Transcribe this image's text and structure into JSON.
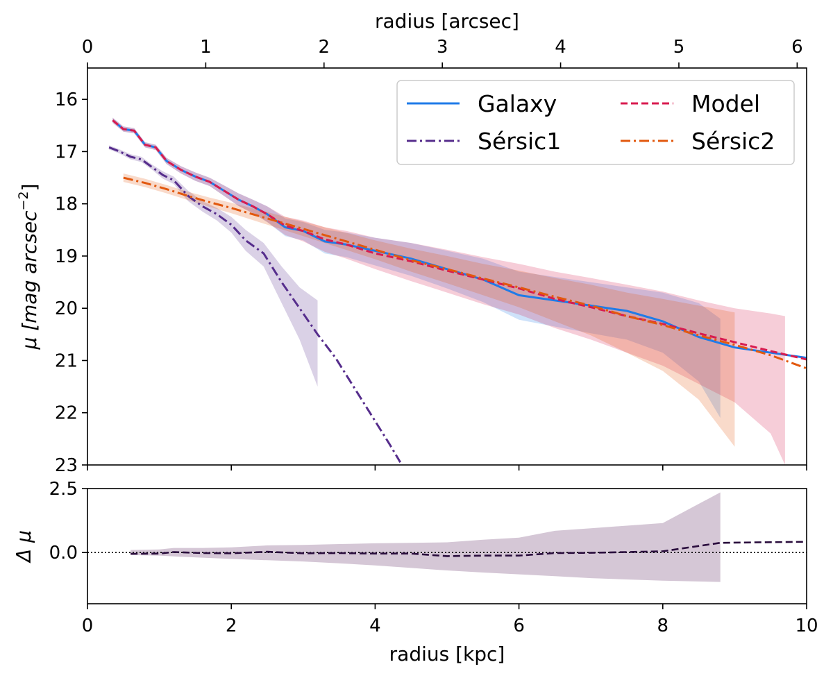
{
  "chart_data": [
    {
      "type": "line",
      "panel": "profile",
      "xlabel": "radius [kpc]",
      "ylabel": "μ [mag arcsec⁻²]",
      "ylabel_main": "μ [mag arcsec",
      "ylabel_exp": "−2",
      "ylabel_close": "]",
      "top_xlabel": "radius [arcsec]",
      "xlim": [
        0,
        10
      ],
      "ylim": [
        23,
        15.4
      ],
      "y_inverted": true,
      "top_xlim": [
        0,
        6.08
      ],
      "top_ticks": [
        0,
        1,
        2,
        3,
        4,
        5,
        6
      ],
      "top_tick_labels": [
        "0",
        "1",
        "2",
        "3",
        "4",
        "5",
        "6"
      ],
      "y_ticks": [
        16,
        17,
        18,
        19,
        20,
        21,
        22,
        23
      ],
      "y_tick_labels": [
        "16",
        "17",
        "18",
        "19",
        "20",
        "21",
        "22",
        "23"
      ],
      "x_ticks": [
        0,
        2,
        4,
        6,
        8,
        10
      ],
      "grid": false,
      "legend": {
        "placement": "top-right",
        "columns": 2
      },
      "series": [
        {
          "name": "Galaxy",
          "color": "#1f7be8",
          "dash": "solid",
          "x": [
            0.35,
            0.5,
            0.65,
            0.8,
            0.95,
            1.1,
            1.3,
            1.5,
            1.7,
            1.9,
            2.1,
            2.3,
            2.5,
            2.75,
            3.0,
            3.3,
            3.6,
            4.0,
            4.5,
            5.0,
            5.5,
            6.0,
            6.5,
            7.0,
            7.5,
            8.0,
            8.5,
            9.0,
            9.5,
            10.0
          ],
          "y": [
            16.4,
            16.57,
            16.6,
            16.87,
            16.92,
            17.18,
            17.35,
            17.48,
            17.58,
            17.75,
            17.92,
            18.05,
            18.2,
            18.45,
            18.52,
            18.72,
            18.78,
            18.9,
            19.05,
            19.25,
            19.45,
            19.75,
            19.85,
            19.95,
            20.05,
            20.25,
            20.55,
            20.75,
            20.85,
            20.95
          ],
          "band_upper": [
            16.35,
            16.52,
            16.55,
            16.82,
            16.87,
            17.12,
            17.28,
            17.4,
            17.5,
            17.65,
            17.8,
            17.92,
            18.05,
            18.28,
            18.35,
            18.5,
            18.55,
            18.65,
            18.75,
            18.9,
            19.05,
            19.3,
            19.4,
            19.5,
            19.6,
            19.7,
            19.9,
            20.2
          ],
          "band_lower": [
            16.45,
            16.62,
            16.65,
            16.92,
            16.97,
            17.24,
            17.42,
            17.56,
            17.66,
            17.85,
            18.04,
            18.18,
            18.35,
            18.62,
            18.7,
            18.95,
            19.02,
            19.18,
            19.38,
            19.62,
            19.88,
            20.22,
            20.35,
            20.48,
            20.6,
            20.85,
            21.4,
            22.1
          ],
          "band_x_max": 8.8
        },
        {
          "name": "Model",
          "color": "#d81b4f",
          "dash": "dashed",
          "x": [
            0.35,
            0.5,
            0.65,
            0.8,
            0.95,
            1.1,
            1.3,
            1.5,
            1.7,
            1.9,
            2.1,
            2.3,
            2.5,
            2.75,
            3.0,
            3.3,
            3.6,
            4.0,
            4.5,
            5.0,
            5.5,
            6.0,
            6.5,
            7.0,
            7.5,
            8.0,
            8.5,
            9.0,
            9.5,
            10.0
          ],
          "y": [
            16.4,
            16.57,
            16.6,
            16.87,
            16.92,
            17.18,
            17.35,
            17.48,
            17.58,
            17.75,
            17.92,
            18.05,
            18.2,
            18.42,
            18.52,
            18.68,
            18.78,
            18.95,
            19.1,
            19.28,
            19.45,
            19.62,
            19.82,
            19.98,
            20.15,
            20.3,
            20.48,
            20.65,
            20.82,
            20.98
          ],
          "band_upper": [
            16.35,
            16.52,
            16.55,
            16.82,
            16.87,
            17.12,
            17.28,
            17.4,
            17.5,
            17.65,
            17.8,
            17.92,
            18.05,
            18.25,
            18.32,
            18.45,
            18.52,
            18.65,
            18.75,
            18.88,
            19.02,
            19.15,
            19.3,
            19.42,
            19.55,
            19.68,
            19.85,
            20.0,
            20.1,
            20.15
          ],
          "band_lower": [
            16.45,
            16.62,
            16.65,
            16.92,
            16.97,
            17.24,
            17.42,
            17.56,
            17.66,
            17.85,
            18.04,
            18.18,
            18.35,
            18.6,
            18.72,
            18.92,
            19.05,
            19.25,
            19.48,
            19.7,
            19.92,
            20.12,
            20.38,
            20.6,
            20.85,
            21.1,
            21.45,
            21.8,
            22.4,
            23.0
          ],
          "band_x_max": 9.7
        },
        {
          "name": "Sérsic1",
          "color": "#562d8c",
          "dash": "dashdot",
          "x": [
            0.3,
            0.45,
            0.6,
            0.75,
            0.9,
            1.05,
            1.2,
            1.4,
            1.6,
            1.8,
            2.0,
            2.2,
            2.45,
            2.7,
            2.95,
            3.2,
            3.45,
            3.7,
            3.95,
            4.2,
            4.35
          ],
          "y": [
            16.92,
            17.0,
            17.1,
            17.15,
            17.3,
            17.45,
            17.55,
            17.85,
            18.05,
            18.2,
            18.4,
            18.7,
            18.95,
            19.5,
            20.0,
            20.5,
            20.95,
            21.5,
            22.05,
            22.6,
            22.95
          ],
          "band_upper": [
            16.88,
            16.96,
            17.05,
            17.1,
            17.25,
            17.38,
            17.48,
            17.75,
            17.95,
            18.08,
            18.25,
            18.5,
            18.75,
            19.2,
            19.6,
            19.85
          ],
          "band_lower": [
            16.96,
            17.04,
            17.15,
            17.2,
            17.35,
            17.52,
            17.62,
            17.95,
            18.15,
            18.32,
            18.55,
            18.9,
            19.2,
            19.9,
            20.6,
            21.5
          ],
          "band_x_max": 3.2
        },
        {
          "name": "Sérsic2",
          "color": "#e2580e",
          "dash": "dashdot",
          "x": [
            0.5,
            0.8,
            1.1,
            1.4,
            1.7,
            2.0,
            2.5,
            3.0,
            3.5,
            4.0,
            4.5,
            5.0,
            5.5,
            6.0,
            6.5,
            7.0,
            7.5,
            8.0,
            8.5,
            9.0,
            9.5,
            10.0
          ],
          "y": [
            17.5,
            17.6,
            17.72,
            17.85,
            17.97,
            18.08,
            18.28,
            18.48,
            18.68,
            18.88,
            19.08,
            19.25,
            19.43,
            19.6,
            19.78,
            19.95,
            20.15,
            20.32,
            20.52,
            20.7,
            20.9,
            21.15
          ],
          "band_upper": [
            17.42,
            17.52,
            17.64,
            17.77,
            17.88,
            17.98,
            18.16,
            18.34,
            18.52,
            18.7,
            18.86,
            19.0,
            19.15,
            19.28,
            19.42,
            19.55,
            19.7,
            19.82,
            19.95,
            20.08
          ],
          "band_lower": [
            17.58,
            17.68,
            17.8,
            17.93,
            18.06,
            18.18,
            18.4,
            18.62,
            18.84,
            19.06,
            19.3,
            19.52,
            19.75,
            19.98,
            20.25,
            20.52,
            20.85,
            21.2,
            21.75,
            22.65
          ],
          "band_x_max": 9.0
        }
      ]
    },
    {
      "type": "line",
      "panel": "residual",
      "xlabel": "radius [kpc]",
      "ylabel": "Δ μ",
      "xlim": [
        0,
        10
      ],
      "ylim": [
        -2.0,
        2.5
      ],
      "x_ticks": [
        0,
        2,
        4,
        6,
        8,
        10
      ],
      "x_tick_labels": [
        "0",
        "2",
        "4",
        "6",
        "8",
        "10"
      ],
      "y_ticks": [
        0.0,
        2.5
      ],
      "y_tick_labels": [
        "0.0",
        "2.5"
      ],
      "reference_line": 0,
      "series": [
        {
          "color": "#2a0d3d",
          "dash": "dashed",
          "band_color": "#ac8fad",
          "x": [
            0.6,
            1.0,
            1.2,
            1.6,
            2.0,
            2.5,
            3.0,
            3.5,
            4.0,
            4.5,
            5.0,
            5.5,
            6.0,
            6.5,
            7.0,
            7.5,
            8.0,
            8.8,
            10.0
          ],
          "y": [
            -0.05,
            -0.04,
            0.02,
            -0.02,
            -0.03,
            0.03,
            -0.03,
            -0.02,
            -0.04,
            -0.04,
            -0.14,
            -0.12,
            -0.12,
            -0.02,
            -0.01,
            0.02,
            0.05,
            0.38,
            0.42
          ],
          "band_upper": [
            0.1,
            0.12,
            0.18,
            0.18,
            0.2,
            0.28,
            0.3,
            0.33,
            0.36,
            0.38,
            0.4,
            0.5,
            0.58,
            0.85,
            0.95,
            1.05,
            1.15,
            2.35
          ],
          "band_lower": [
            -0.1,
            -0.12,
            -0.15,
            -0.2,
            -0.25,
            -0.3,
            -0.35,
            -0.42,
            -0.5,
            -0.6,
            -0.7,
            -0.78,
            -0.85,
            -0.92,
            -1.0,
            -1.05,
            -1.1,
            -1.15
          ],
          "band_x_max": 8.8
        }
      ]
    }
  ]
}
